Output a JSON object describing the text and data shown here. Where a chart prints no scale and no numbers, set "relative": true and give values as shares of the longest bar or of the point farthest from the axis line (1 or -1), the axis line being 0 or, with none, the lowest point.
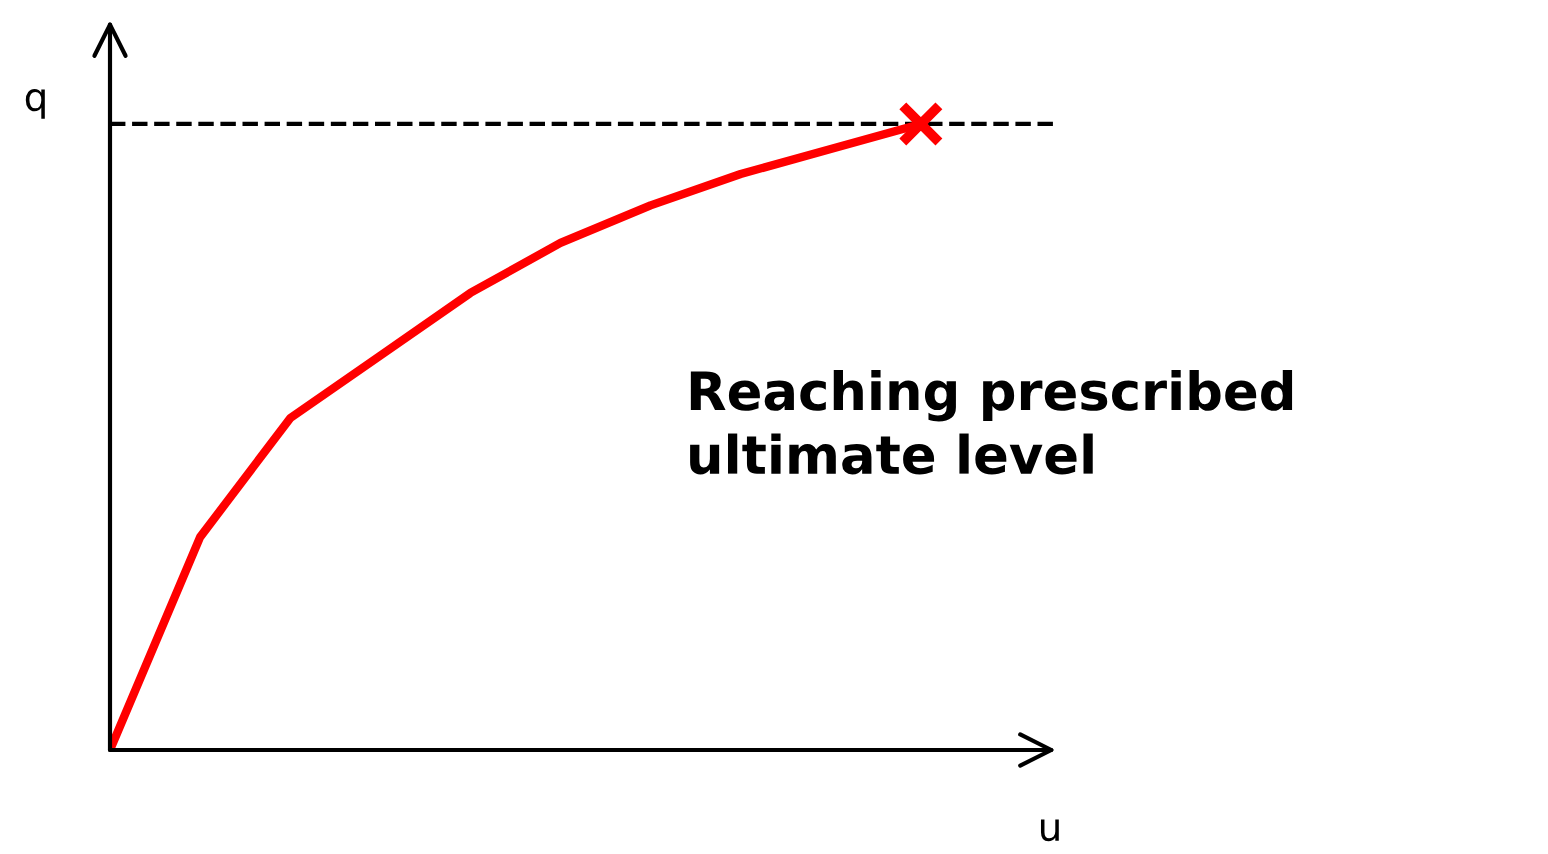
{
  "chart_data": {
    "type": "line",
    "relative": true,
    "xlabel": "u",
    "ylabel": "q",
    "categories": [
      null,
      null,
      null,
      null,
      null,
      null,
      null,
      null,
      null,
      null
    ],
    "series": [
      {
        "color": "#ff0000",
        "marker": "none",
        "values": [
          0,
          0.34,
          0.53,
          0.63,
          0.73,
          0.81,
          0.87,
          0.92,
          0.96,
          1
        ]
      }
    ],
    "ref_lines": [
      {
        "axis": "y",
        "value": 1,
        "label": null,
        "color": "#000000",
        "line_style": "dashed"
      }
    ],
    "annotations": [
      "Reaching prescribed ultimate level"
    ],
    "tick_labels": false
  }
}
